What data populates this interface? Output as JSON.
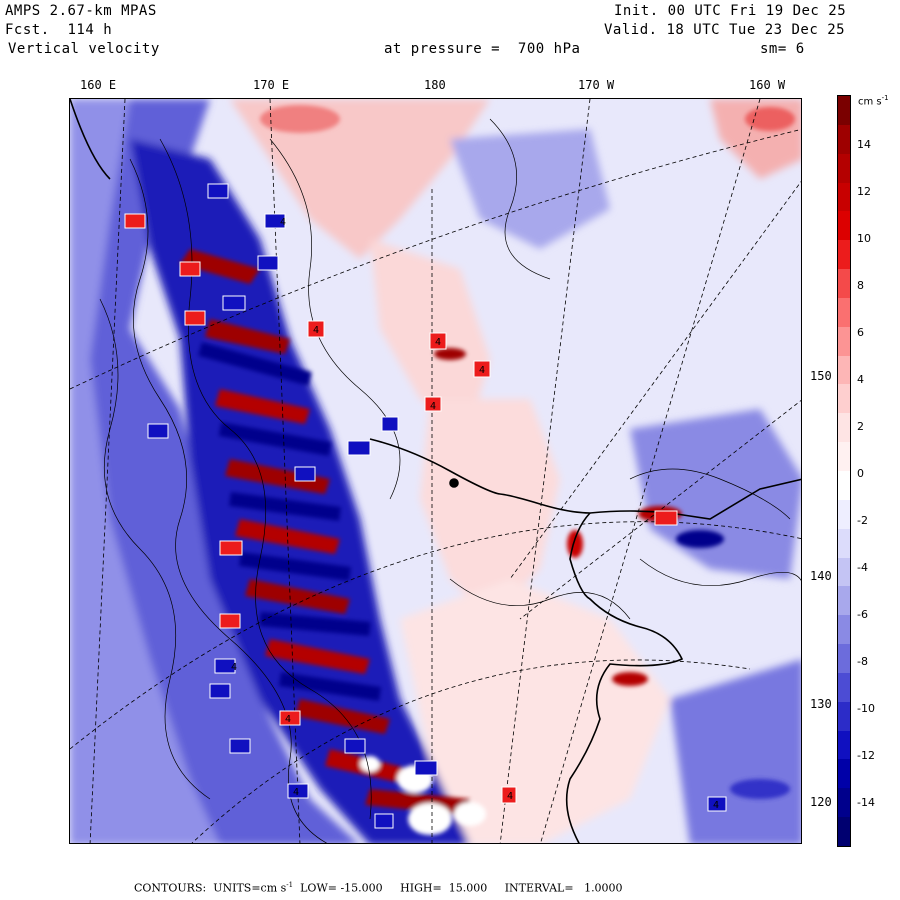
{
  "header": {
    "model": "AMPS 2.67-km MPAS",
    "forecast": "Fcst.  114 h",
    "field": "Vertical velocity",
    "init": "Init. 00 UTC Fri 19 Dec 25",
    "valid": "Valid. 18 UTC Tue 23 Dec 25",
    "level": "at pressure =  700 hPa",
    "smoothing": "sm= 6"
  },
  "map": {
    "top_longitude_labels": [
      "160 E",
      "170 E",
      "180",
      "170 W",
      "160 W"
    ],
    "right_longitude_labels": [
      "150 W",
      "140 W",
      "130 W",
      "120 W"
    ],
    "station_label": "4"
  },
  "colorbar": {
    "units": "cm s",
    "units_exponent": "-1",
    "tick_labels": [
      "14",
      "12",
      "10",
      "8",
      "6",
      "4",
      "2",
      "0",
      "-2",
      "-4",
      "-6",
      "-8",
      "-10",
      "-12",
      "-14"
    ],
    "colors": [
      "#7a0000",
      "#9e0000",
      "#b40000",
      "#c80000",
      "#dc0000",
      "#ec1c1c",
      "#f44a4a",
      "#fa7070",
      "#fc9494",
      "#fdb6b6",
      "#fecfcf",
      "#fee4e4",
      "#fff1f1",
      "#ffffff",
      "#eeeeff",
      "#dcdcfb",
      "#c4c4f4",
      "#a8a8ec",
      "#8a8ae4",
      "#6c6cdc",
      "#4c4cd4",
      "#2c2cc8",
      "#1010c0",
      "#0000a8",
      "#00008c",
      "#000070"
    ]
  },
  "footer": {
    "contours_label": "CONTOURS:",
    "units_text": "UNITS=cm s",
    "units_exponent": "-1",
    "low": "LOW= -15.000",
    "high": "HIGH=  15.000",
    "interval": "INTERVAL=   1.0000"
  }
}
